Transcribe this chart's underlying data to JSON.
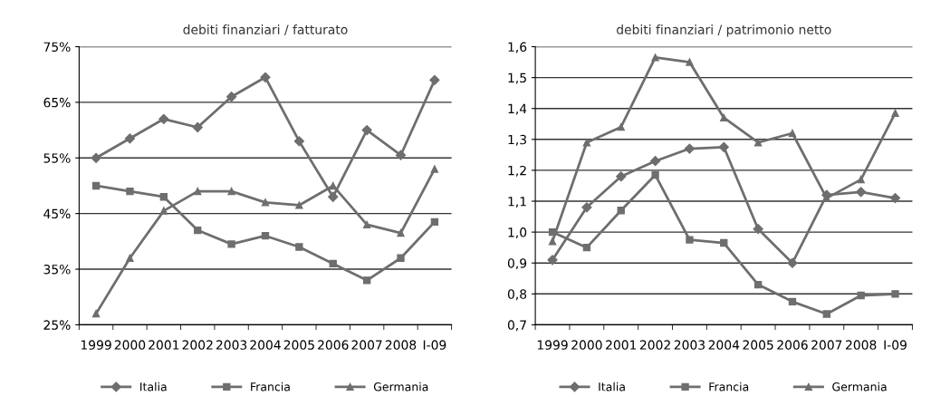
{
  "chart_data": [
    {
      "type": "line",
      "title": "debiti finanziari / fatturato",
      "categories": [
        "1999",
        "2000",
        "2001",
        "2002",
        "2003",
        "2004",
        "2005",
        "2006",
        "2007",
        "2008",
        "I-09"
      ],
      "series": [
        {
          "name": "Italia",
          "color": "#6e6e6e",
          "marker": "diamond",
          "values": [
            55,
            58.5,
            62,
            60.5,
            66,
            69.5,
            58,
            48,
            60,
            55.5,
            69
          ]
        },
        {
          "name": "Francia",
          "color": "#6e6e6e",
          "marker": "square",
          "values": [
            50,
            49,
            48,
            42,
            39.5,
            41,
            39,
            36,
            33,
            37,
            43.5
          ]
        },
        {
          "name": "Germania",
          "color": "#6e6e6e",
          "marker": "triangle",
          "values": [
            27,
            37,
            45.5,
            49,
            49,
            47,
            46.5,
            50,
            43,
            41.5,
            53
          ]
        }
      ],
      "ylim": [
        25,
        75
      ],
      "yticks": [
        {
          "value": 25,
          "label": "25%"
        },
        {
          "value": 35,
          "label": "35%"
        },
        {
          "value": 45,
          "label": "45%"
        },
        {
          "value": 55,
          "label": "55%"
        },
        {
          "value": 65,
          "label": "65%"
        },
        {
          "value": 75,
          "label": "75%"
        }
      ],
      "grid": "y",
      "legend": "bottom",
      "line_style": "solid"
    },
    {
      "type": "line",
      "title": "debiti finanziari / patrimonio netto",
      "categories": [
        "1999",
        "2000",
        "2001",
        "2002",
        "2003",
        "2004",
        "2005",
        "2006",
        "2007",
        "2008",
        "I-09"
      ],
      "series": [
        {
          "name": "Italia",
          "color": "#6e6e6e",
          "marker": "diamond",
          "values": [
            0.91,
            1.08,
            1.18,
            1.23,
            1.27,
            1.275,
            1.01,
            0.9,
            1.12,
            1.13,
            1.11
          ]
        },
        {
          "name": "Francia",
          "color": "#6e6e6e",
          "marker": "square",
          "values": [
            1.0,
            0.95,
            1.07,
            1.185,
            0.975,
            0.965,
            0.83,
            0.775,
            0.735,
            0.795,
            0.8
          ]
        },
        {
          "name": "Germania",
          "color": "#6e6e6e",
          "marker": "triangle",
          "values": [
            0.97,
            1.29,
            1.34,
            1.565,
            1.55,
            1.37,
            1.29,
            1.32,
            1.11,
            1.17,
            1.385
          ]
        }
      ],
      "ylim": [
        0.7,
        1.6
      ],
      "yticks": [
        {
          "value": 0.7,
          "label": "0,7"
        },
        {
          "value": 0.8,
          "label": "0,8"
        },
        {
          "value": 0.9,
          "label": "0,9"
        },
        {
          "value": 1.0,
          "label": "1,0"
        },
        {
          "value": 1.1,
          "label": "1,1"
        },
        {
          "value": 1.2,
          "label": "1,2"
        },
        {
          "value": 1.3,
          "label": "1,3"
        },
        {
          "value": 1.4,
          "label": "1,4"
        },
        {
          "value": 1.5,
          "label": "1,5"
        },
        {
          "value": 1.6,
          "label": "1,6"
        }
      ],
      "grid": "y",
      "legend": "bottom",
      "line_style": "solid"
    }
  ]
}
